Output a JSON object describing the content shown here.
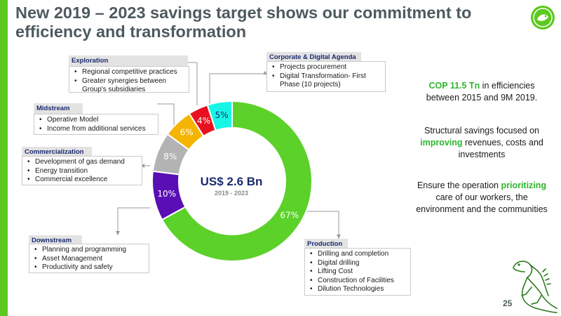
{
  "title": "New 2019 – 2023 savings target shows our commitment to efficiency and transformation",
  "page_number": "25",
  "colors": {
    "accent": "#5cc91e",
    "navy": "#1a2a6e",
    "highlight": "#2db52d"
  },
  "icons": {
    "logo": "iguana-logo-icon",
    "mascot": "iguana-icon"
  },
  "center": {
    "title": "US$ 2.6 Bn",
    "subtitle": "2019 - 2023"
  },
  "chart_data": {
    "type": "pie",
    "donut": true,
    "labels": [
      "Production",
      "Downstream",
      "Commercialization",
      "Midstream",
      "Exploration",
      "Corporate & Digital Agenda"
    ],
    "values": [
      67,
      10,
      8,
      6,
      4,
      5
    ],
    "data_labels": [
      "67%",
      "10%",
      "8%",
      "6%",
      "4%",
      "5%"
    ],
    "colors": [
      "#5cd12a",
      "#5a0fb4",
      "#b3b3b3",
      "#f4b400",
      "#e8101f",
      "#17f5e6"
    ]
  },
  "categories": {
    "exploration": {
      "title": "Exploration",
      "items": [
        "Regional competitive practices",
        "Greater synergies between Group's subsidiaries"
      ]
    },
    "midstream": {
      "title": "Midstream",
      "items": [
        "Operative Model",
        "Income from additional services"
      ]
    },
    "commercialization": {
      "title": "Commercialization",
      "items": [
        "Development of gas demand",
        "Energy transition",
        "Commercial excellence"
      ]
    },
    "downstream": {
      "title": "Downstream",
      "items": [
        "Planning and programming",
        "Asset Management",
        "Productivity and safety"
      ]
    },
    "corporate": {
      "title": "Corporate & Digital Agenda",
      "items": [
        "Projects procurement",
        "Digital Transformation- First Phase (10 projects)"
      ]
    },
    "production": {
      "title": "Production",
      "items": [
        "Drilling and completion",
        "Digital drilling",
        "Lifting Cost",
        "Construction of Facilities",
        "Dilution Technologies"
      ]
    }
  },
  "right_text": {
    "p1_highlight": "COP 11.5 Tn",
    "p1_rest": " in efficiencies between 2015 and 9M 2019.",
    "p2_pre": "Structural savings focused on ",
    "p2_highlight": "improving",
    "p2_post": " revenues, costs and investments",
    "p3_pre": "Ensure the operation ",
    "p3_highlight": "prioritizing",
    "p3_post": " care of our workers, the environment and the communities"
  }
}
